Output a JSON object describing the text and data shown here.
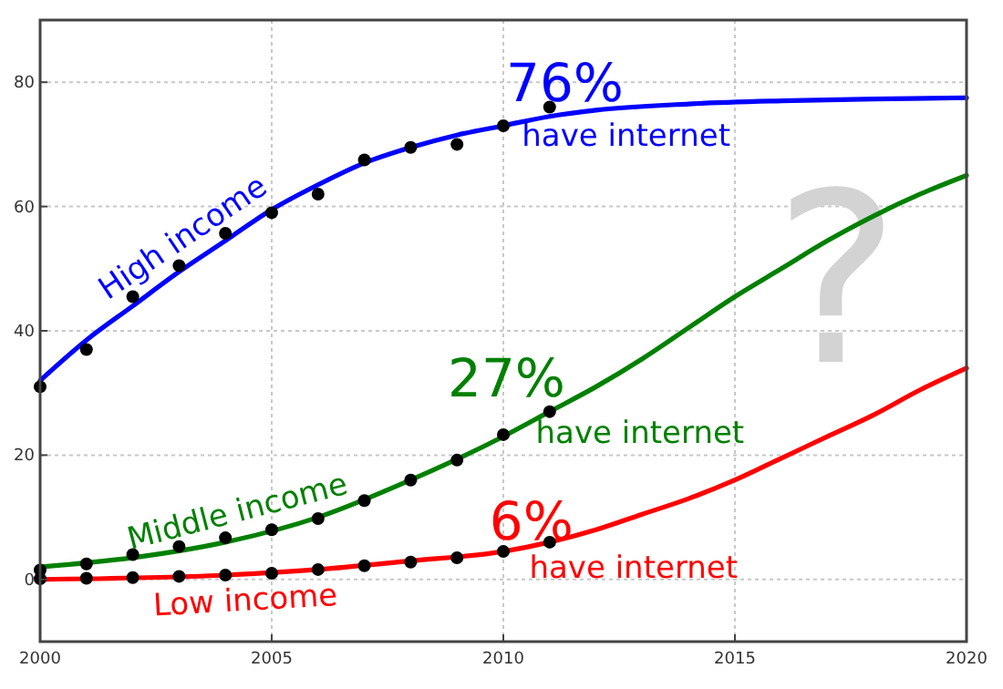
{
  "chart_data": {
    "type": "line",
    "xlim": [
      2000,
      2020
    ],
    "ylim": [
      -10,
      90
    ],
    "xticks": [
      2000,
      2005,
      2010,
      2015,
      2020
    ],
    "yticks": [
      0,
      20,
      40,
      60,
      80
    ],
    "grid": true,
    "series": [
      {
        "name": "High income",
        "color": "#0000ff",
        "marker": "none",
        "x": [
          2000,
          2001,
          2002,
          2003,
          2004,
          2005,
          2006,
          2007,
          2008,
          2009,
          2010,
          2011,
          2012,
          2014,
          2016,
          2018,
          2020
        ],
        "values": [
          32,
          38.5,
          44,
          49.5,
          54.5,
          59.5,
          63.5,
          67,
          69.5,
          71.5,
          73,
          74.5,
          75.5,
          76.5,
          77,
          77.3,
          77.5
        ]
      },
      {
        "name": "Middle income",
        "color": "#008000",
        "marker": "none",
        "x": [
          2000,
          2002,
          2004,
          2006,
          2008,
          2010,
          2011,
          2012,
          2013,
          2014,
          2015,
          2016,
          2017,
          2018,
          2019,
          2020
        ],
        "values": [
          2,
          3.5,
          6,
          10,
          16,
          23,
          27,
          31,
          35.5,
          40.5,
          45.5,
          50,
          54.5,
          58.5,
          62,
          65
        ]
      },
      {
        "name": "Low income",
        "color": "#ff0000",
        "marker": "none",
        "x": [
          2000,
          2004,
          2006,
          2008,
          2010,
          2011,
          2012,
          2013,
          2014,
          2015,
          2016,
          2017,
          2018,
          2019,
          2020
        ],
        "values": [
          0,
          0.7,
          1.6,
          3,
          4.5,
          6,
          8,
          10.5,
          13,
          16,
          19.5,
          23,
          26.5,
          30.5,
          34
        ]
      },
      {
        "type": "scatter",
        "color": "#000000",
        "marker": "circle",
        "x": [
          2000,
          2001,
          2002,
          2003,
          2004,
          2005,
          2006,
          2007,
          2008,
          2009,
          2010,
          2011
        ],
        "values": [
          31,
          37,
          45.5,
          50.5,
          55.7,
          59,
          62,
          67.5,
          69.5,
          70,
          73,
          76
        ]
      },
      {
        "type": "scatter",
        "color": "#000000",
        "marker": "circle",
        "x": [
          2000,
          2001,
          2002,
          2003,
          2004,
          2005,
          2006,
          2007,
          2008,
          2009,
          2010,
          2011
        ],
        "values": [
          1.5,
          2.5,
          4,
          5.3,
          6.7,
          8,
          9.8,
          12.7,
          16,
          19.2,
          23.3,
          27
        ]
      },
      {
        "type": "scatter",
        "color": "#000000",
        "marker": "circle",
        "x": [
          2000,
          2001,
          2002,
          2003,
          2004,
          2005,
          2006,
          2007,
          2008,
          2009,
          2010,
          2011
        ],
        "values": [
          0.1,
          0.2,
          0.3,
          0.5,
          0.7,
          1,
          1.6,
          2.2,
          2.8,
          3.5,
          4.5,
          6
        ]
      }
    ],
    "annotations": [
      "76%",
      "have internet",
      "27%",
      "have internet",
      "6%",
      "have internet",
      "?"
    ]
  }
}
